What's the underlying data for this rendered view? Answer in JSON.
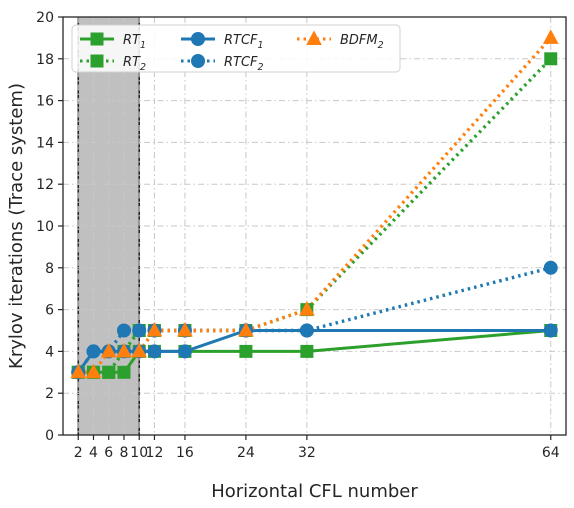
{
  "chart_data": {
    "type": "line",
    "xlabel": "Horizontal CFL number",
    "ylabel": "Krylov iterations (Trace system)",
    "xlim": [
      0,
      66
    ],
    "ylim": [
      0,
      20
    ],
    "xticks": [
      2,
      4,
      6,
      8,
      10,
      12,
      16,
      24,
      32,
      64
    ],
    "yticks": [
      0,
      2,
      4,
      6,
      8,
      10,
      12,
      14,
      16,
      18,
      20
    ],
    "grid": true,
    "legend_position": "top-left",
    "shaded_region": {
      "x_range": [
        2,
        10
      ],
      "color": "#c0c0c0"
    },
    "series": [
      {
        "name": "RT",
        "subscript": "1",
        "style": "solid",
        "marker": "square",
        "color": "#2ca02c",
        "x": [
          2,
          4,
          6,
          8,
          10,
          12,
          16,
          24,
          32,
          64
        ],
        "values": [
          3,
          3,
          3,
          3,
          4,
          4,
          4,
          4,
          4,
          5
        ]
      },
      {
        "name": "RT",
        "subscript": "2",
        "style": "dotted",
        "marker": "square",
        "color": "#2ca02c",
        "x": [
          2,
          4,
          6,
          8,
          10,
          12,
          16,
          24,
          32,
          64
        ],
        "values": [
          3,
          3,
          3,
          4,
          5,
          5,
          5,
          5,
          6,
          18
        ]
      },
      {
        "name": "RTCF",
        "subscript": "1",
        "style": "solid",
        "marker": "circle",
        "color": "#1f77b4",
        "x": [
          2,
          4,
          6,
          8,
          10,
          12,
          16,
          24,
          32,
          64
        ],
        "values": [
          3,
          4,
          4,
          4,
          4,
          4,
          4,
          5,
          5,
          5
        ]
      },
      {
        "name": "RTCF",
        "subscript": "2",
        "style": "dotted",
        "marker": "circle",
        "color": "#1f77b4",
        "x": [
          2,
          4,
          6,
          8,
          10,
          12,
          16,
          24,
          32,
          64
        ],
        "values": [
          3,
          4,
          4,
          5,
          5,
          5,
          5,
          5,
          5,
          8
        ]
      },
      {
        "name": "BDFM",
        "subscript": "2",
        "style": "dotted",
        "marker": "triangle",
        "color": "#ff7f0e",
        "x": [
          2,
          4,
          6,
          8,
          10,
          12,
          16,
          24,
          32,
          64
        ],
        "values": [
          3,
          3,
          4,
          4,
          4,
          5,
          5,
          5,
          6,
          19
        ]
      }
    ]
  }
}
